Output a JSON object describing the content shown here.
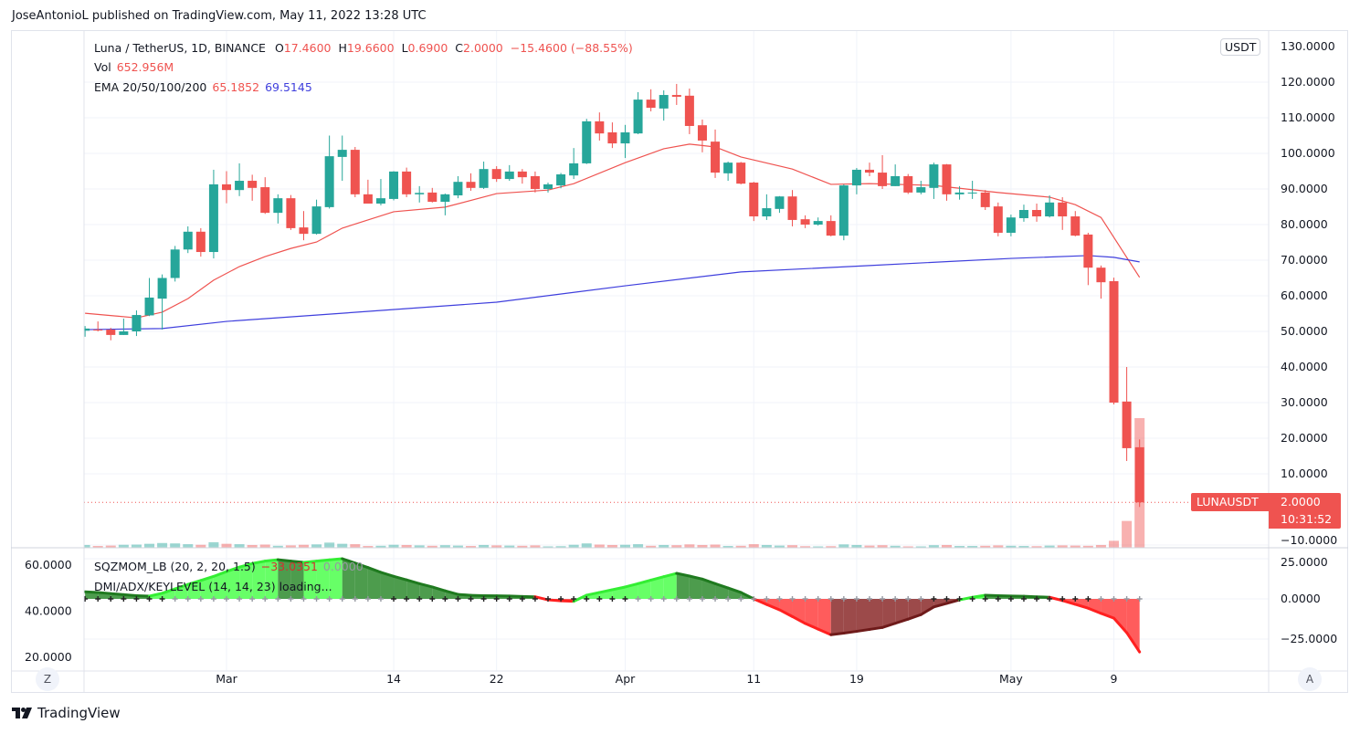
{
  "publish_line": "JoseAntonioL published on TradingView.com, May 11, 2022 13:28 UTC",
  "legend": {
    "symbol": "Luna / TetherUS, 1D, BINANCE",
    "open_label": "O",
    "open": "17.4600",
    "high_label": "H",
    "high": "19.6600",
    "low_label": "L",
    "low": "0.6900",
    "close_label": "C",
    "close": "2.0000",
    "change": "−15.4600 (−88.55%)",
    "vol_label": "Vol",
    "vol": "652.956M",
    "ema_label": "EMA 20/50/100/200",
    "ema_a": "65.1852",
    "ema_b": "69.5145"
  },
  "indicators": {
    "sqz_label": "SQZMOM_LB (20, 2, 20, 1.5)",
    "sqz_value": "−33.0351",
    "sqz_value2": "0.0000",
    "dmi_label": "DMI/ADX/KEYLEVEL (14, 14, 23) loading..."
  },
  "price_axis": {
    "currency_button": "USDT",
    "ticks": [
      "130.0000",
      "120.0000",
      "110.0000",
      "100.0000",
      "90.0000",
      "80.0000",
      "70.0000",
      "60.0000",
      "50.0000",
      "40.0000",
      "30.0000",
      "20.0000",
      "10.0000",
      "−10.0000"
    ],
    "tick_values": [
      130,
      120,
      110,
      100,
      90,
      80,
      70,
      60,
      50,
      40,
      30,
      20,
      10,
      -10
    ]
  },
  "momentum_axis": {
    "ticks": [
      "25.0000",
      "0.0000",
      "−25.0000"
    ],
    "tick_values": [
      25,
      0,
      -25
    ]
  },
  "dmi_axis": {
    "ticks": [
      "60.0000",
      "40.0000",
      "20.0000"
    ],
    "tick_values": [
      60,
      40,
      20
    ]
  },
  "time_axis": {
    "ticks": [
      {
        "label": "Mar",
        "date": "2022-03-01"
      },
      {
        "label": "14",
        "date": "2022-03-14"
      },
      {
        "label": "22",
        "date": "2022-03-22"
      },
      {
        "label": "Apr",
        "date": "2022-04-01"
      },
      {
        "label": "11",
        "date": "2022-04-11"
      },
      {
        "label": "19",
        "date": "2022-04-19"
      },
      {
        "label": "May",
        "date": "2022-05-01"
      },
      {
        "label": "9",
        "date": "2022-05-09"
      }
    ]
  },
  "last_price": {
    "symbol": "LUNAUSDT",
    "price": "2.0000",
    "countdown": "10:31:52",
    "value": 2.0
  },
  "buttons": {
    "z": "Z",
    "a": "A"
  },
  "branding": "TradingView",
  "colors": {
    "up": "#26a69a",
    "down": "#ef5350",
    "ema_a": "#ef5350",
    "ema_b": "#3f3fdd",
    "mom_up_pos": "#4cff4c",
    "mom_down_pos": "#2e8b2e",
    "mom_down_neg": "#ff4040",
    "mom_up_neg": "#8b2a2a"
  },
  "chart_data": [
    {
      "type": "candlestick",
      "title": "Luna / TetherUS, 1D, BINANCE",
      "ylim": [
        -10,
        130
      ],
      "columns": [
        "date",
        "open",
        "high",
        "low",
        "close",
        "volume_m"
      ],
      "candles": [
        [
          "2022-02-18",
          50.2,
          51.5,
          48.5,
          50.8,
          14
        ],
        [
          "2022-02-19",
          50.5,
          52.8,
          50.0,
          50.3,
          9
        ],
        [
          "2022-02-20",
          50.5,
          51.0,
          47.5,
          49.0,
          11
        ],
        [
          "2022-02-21",
          49.0,
          53.6,
          49.0,
          50.0,
          15
        ],
        [
          "2022-02-22",
          50.0,
          55.9,
          48.7,
          54.6,
          16
        ],
        [
          "2022-02-23",
          54.5,
          65.0,
          54.3,
          59.5,
          20
        ],
        [
          "2022-02-24",
          59.2,
          66.0,
          50.5,
          65.0,
          24
        ],
        [
          "2022-02-25",
          65.0,
          74.0,
          64.0,
          73.0,
          22
        ],
        [
          "2022-02-26",
          73.0,
          79.5,
          72.0,
          78.0,
          18
        ],
        [
          "2022-02-27",
          78.0,
          79.0,
          71.0,
          72.3,
          15
        ],
        [
          "2022-02-28",
          72.3,
          95.4,
          70.5,
          91.3,
          28
        ],
        [
          "2022-03-01",
          91.3,
          95.0,
          86.0,
          89.7,
          20
        ],
        [
          "2022-03-02",
          89.7,
          97.2,
          88.0,
          92.3,
          18
        ],
        [
          "2022-03-03",
          92.3,
          94.0,
          86.7,
          90.3,
          14
        ],
        [
          "2022-03-04",
          90.5,
          93.3,
          83.0,
          83.3,
          16
        ],
        [
          "2022-03-05",
          83.3,
          88.5,
          80.3,
          87.4,
          10
        ],
        [
          "2022-03-06",
          87.4,
          88.3,
          78.5,
          79.0,
          12
        ],
        [
          "2022-03-07",
          79.2,
          83.8,
          75.6,
          77.4,
          15
        ],
        [
          "2022-03-08",
          77.4,
          87.0,
          77.2,
          85.1,
          17
        ],
        [
          "2022-03-09",
          84.9,
          105.0,
          84.5,
          99.2,
          26
        ],
        [
          "2022-03-10",
          99.0,
          105.0,
          92.3,
          101.0,
          20
        ],
        [
          "2022-03-11",
          101.0,
          101.8,
          87.7,
          88.5,
          18
        ],
        [
          "2022-03-12",
          88.5,
          92.6,
          85.9,
          85.9,
          9
        ],
        [
          "2022-03-13",
          85.9,
          92.8,
          85.4,
          87.4,
          10
        ],
        [
          "2022-03-14",
          87.2,
          95.0,
          86.8,
          94.9,
          15
        ],
        [
          "2022-03-15",
          94.9,
          96.0,
          87.7,
          88.5,
          14
        ],
        [
          "2022-03-16",
          88.5,
          90.8,
          86.2,
          88.9,
          12
        ],
        [
          "2022-03-17",
          89.0,
          90.3,
          86.2,
          86.4,
          10
        ],
        [
          "2022-03-18",
          86.4,
          88.7,
          82.6,
          88.5,
          13
        ],
        [
          "2022-03-19",
          88.2,
          93.6,
          87.4,
          92.0,
          11
        ],
        [
          "2022-03-20",
          92.0,
          94.4,
          89.5,
          90.3,
          9
        ],
        [
          "2022-03-21",
          90.3,
          97.7,
          90.0,
          95.6,
          14
        ],
        [
          "2022-03-22",
          95.6,
          96.4,
          92.0,
          92.8,
          12
        ],
        [
          "2022-03-23",
          92.8,
          96.7,
          92.3,
          94.9,
          11
        ],
        [
          "2022-03-24",
          94.9,
          95.6,
          91.5,
          93.3,
          10
        ],
        [
          "2022-03-25",
          93.6,
          94.9,
          89.0,
          90.0,
          12
        ],
        [
          "2022-03-26",
          90.0,
          91.8,
          89.0,
          91.3,
          7
        ],
        [
          "2022-03-27",
          91.0,
          94.5,
          90.2,
          94.1,
          8
        ],
        [
          "2022-03-28",
          93.8,
          101.5,
          92.8,
          97.2,
          15
        ],
        [
          "2022-03-29",
          97.2,
          109.7,
          97.0,
          109.0,
          22
        ],
        [
          "2022-03-30",
          109.0,
          111.5,
          103.6,
          105.6,
          16
        ],
        [
          "2022-03-31",
          105.9,
          108.7,
          101.5,
          102.8,
          14
        ],
        [
          "2022-04-01",
          102.8,
          108.0,
          98.7,
          105.9,
          15
        ],
        [
          "2022-04-02",
          105.6,
          117.2,
          105.4,
          115.1,
          18
        ],
        [
          "2022-04-03",
          115.1,
          118.0,
          111.8,
          112.8,
          10
        ],
        [
          "2022-04-04",
          112.6,
          117.7,
          109.2,
          116.4,
          14
        ],
        [
          "2022-04-05",
          116.4,
          119.5,
          113.6,
          115.9,
          13
        ],
        [
          "2022-04-06",
          116.2,
          118.2,
          105.4,
          107.7,
          17
        ],
        [
          "2022-04-07",
          107.9,
          109.5,
          100.3,
          103.6,
          14
        ],
        [
          "2022-04-08",
          103.3,
          106.7,
          93.1,
          94.6,
          16
        ],
        [
          "2022-04-09",
          94.4,
          97.7,
          92.3,
          97.4,
          9
        ],
        [
          "2022-04-10",
          97.4,
          97.6,
          91.3,
          91.5,
          10
        ],
        [
          "2022-04-11",
          91.8,
          92.0,
          81.0,
          82.3,
          18
        ],
        [
          "2022-04-12",
          82.3,
          88.5,
          81.3,
          84.6,
          14
        ],
        [
          "2022-04-13",
          84.4,
          88.0,
          83.3,
          87.9,
          11
        ],
        [
          "2022-04-14",
          87.9,
          89.7,
          79.5,
          81.3,
          13
        ],
        [
          "2022-04-15",
          81.5,
          82.6,
          79.0,
          80.0,
          8
        ],
        [
          "2022-04-16",
          80.0,
          82.0,
          79.7,
          81.0,
          6
        ],
        [
          "2022-04-17",
          81.0,
          82.6,
          76.7,
          76.9,
          8
        ],
        [
          "2022-04-18",
          76.9,
          91.3,
          75.6,
          91.0,
          17
        ],
        [
          "2022-04-19",
          91.0,
          95.9,
          88.5,
          95.4,
          14
        ],
        [
          "2022-04-20",
          95.4,
          97.4,
          93.6,
          94.6,
          11
        ],
        [
          "2022-04-21",
          94.6,
          99.5,
          90.0,
          90.8,
          13
        ],
        [
          "2022-04-22",
          90.8,
          96.9,
          90.8,
          93.6,
          10
        ],
        [
          "2022-04-23",
          93.6,
          94.2,
          88.6,
          89.0,
          7
        ],
        [
          "2022-04-24",
          89.0,
          92.3,
          88.5,
          90.5,
          6
        ],
        [
          "2022-04-25",
          90.3,
          97.4,
          87.2,
          96.9,
          13
        ],
        [
          "2022-04-26",
          96.9,
          97.0,
          86.7,
          88.5,
          14
        ],
        [
          "2022-04-27",
          88.5,
          90.8,
          87.0,
          89.0,
          9
        ],
        [
          "2022-04-28",
          88.8,
          92.3,
          87.2,
          89.0,
          9
        ],
        [
          "2022-04-29",
          89.0,
          89.7,
          84.1,
          84.9,
          10
        ],
        [
          "2022-04-30",
          85.1,
          86.2,
          76.7,
          77.7,
          12
        ],
        [
          "2022-05-01",
          77.7,
          82.8,
          76.7,
          82.0,
          10
        ],
        [
          "2022-05-02",
          81.8,
          85.6,
          80.8,
          84.1,
          9
        ],
        [
          "2022-05-03",
          84.1,
          85.9,
          80.8,
          82.3,
          8
        ],
        [
          "2022-05-04",
          82.3,
          88.2,
          82.0,
          86.2,
          11
        ],
        [
          "2022-05-05",
          86.2,
          87.7,
          78.5,
          82.3,
          12
        ],
        [
          "2022-05-06",
          82.3,
          83.8,
          76.7,
          76.9,
          11
        ],
        [
          "2022-05-07",
          77.2,
          77.7,
          63.0,
          67.9,
          10
        ],
        [
          "2022-05-08",
          67.9,
          68.5,
          59.2,
          63.8,
          14
        ],
        [
          "2022-05-09",
          64.1,
          65.1,
          29.5,
          30.0,
          35
        ],
        [
          "2022-05-10",
          30.3,
          40.0,
          13.6,
          17.2,
          135
        ],
        [
          "2022-05-11",
          17.46,
          19.66,
          0.69,
          2.0,
          652.956
        ]
      ],
      "ema_series": [
        {
          "value_label": "65.1852",
          "color": "#ef5350",
          "points": [
            [
              "2022-02-18",
              55.1
            ],
            [
              "2022-02-22",
              53.8
            ],
            [
              "2022-02-24",
              55.4
            ],
            [
              "2022-02-26",
              59.2
            ],
            [
              "2022-02-28",
              64.4
            ],
            [
              "2022-03-02",
              68.2
            ],
            [
              "2022-03-04",
              71.0
            ],
            [
              "2022-03-06",
              73.3
            ],
            [
              "2022-03-08",
              75.1
            ],
            [
              "2022-03-10",
              79.0
            ],
            [
              "2022-03-14",
              83.6
            ],
            [
              "2022-03-18",
              84.9
            ],
            [
              "2022-03-22",
              88.7
            ],
            [
              "2022-03-26",
              89.7
            ],
            [
              "2022-03-28",
              91.5
            ],
            [
              "2022-04-01",
              97.4
            ],
            [
              "2022-04-04",
              101.3
            ],
            [
              "2022-04-06",
              102.6
            ],
            [
              "2022-04-08",
              101.8
            ],
            [
              "2022-04-10",
              99.0
            ],
            [
              "2022-04-14",
              95.6
            ],
            [
              "2022-04-17",
              91.3
            ],
            [
              "2022-04-20",
              91.5
            ],
            [
              "2022-04-25",
              91.0
            ],
            [
              "2022-04-30",
              89.0
            ],
            [
              "2022-05-04",
              87.7
            ],
            [
              "2022-05-06",
              85.6
            ],
            [
              "2022-05-08",
              82.0
            ],
            [
              "2022-05-09",
              76.4
            ],
            [
              "2022-05-11",
              65.1852
            ]
          ]
        },
        {
          "value_label": "69.5145",
          "color": "#3f3fdd",
          "points": [
            [
              "2022-02-18",
              50.5
            ],
            [
              "2022-02-24",
              50.8
            ],
            [
              "2022-03-01",
              52.8
            ],
            [
              "2022-03-10",
              55.1
            ],
            [
              "2022-03-22",
              58.2
            ],
            [
              "2022-04-01",
              62.8
            ],
            [
              "2022-04-10",
              66.7
            ],
            [
              "2022-04-20",
              68.5
            ],
            [
              "2022-05-01",
              70.5
            ],
            [
              "2022-05-07",
              71.3
            ],
            [
              "2022-05-09",
              70.8
            ],
            [
              "2022-05-11",
              69.5145
            ]
          ]
        }
      ]
    },
    {
      "type": "area",
      "title": "SQZMOM_LB (20, 2, 20, 1.5)",
      "ylim": [
        -35,
        30
      ],
      "start_date": "2022-02-18",
      "values": [
        4.4,
        4.0,
        3.3,
        2.6,
        2.0,
        1.7,
        3.5,
        6.2,
        9,
        11.5,
        14,
        17,
        19.8,
        22,
        23.5,
        24.4,
        23.5,
        22.7,
        23.5,
        24.3,
        25,
        22.3,
        19.5,
        16.5,
        14,
        11.8,
        9.5,
        7.4,
        5,
        2.8,
        2.2,
        2.0,
        1.9,
        1.8,
        1.5,
        1.3,
        -0.6,
        -1.2,
        -1.5,
        2.3,
        4.0,
        5.7,
        7.4,
        9.5,
        11.7,
        13.8,
        15.9,
        14.2,
        12.3,
        9.5,
        6.8,
        4,
        0,
        -3.5,
        -6.8,
        -11,
        -15.3,
        -18.8,
        -22.3,
        -21.3,
        -20.2,
        -19,
        -17.8,
        -15.2,
        -12.6,
        -9.8,
        -5,
        -2.8,
        -0.6,
        1,
        2.3,
        2.0,
        1.8,
        1.6,
        1.3,
        1,
        -1,
        -3.4,
        -5.8,
        -9,
        -12,
        -21,
        -33.0351
      ],
      "squeeze_on": [
        1,
        1,
        1,
        1,
        1,
        1,
        1,
        0,
        0,
        0,
        0,
        0,
        0,
        0,
        0,
        0,
        0,
        0,
        0,
        0,
        0,
        0,
        0,
        0,
        1,
        1,
        1,
        1,
        1,
        1,
        1,
        1,
        1,
        1,
        1,
        1,
        1,
        1,
        1,
        1,
        1,
        1,
        1,
        0,
        0,
        0,
        0,
        0,
        0,
        0,
        0,
        0,
        0,
        0,
        0,
        0,
        0,
        0,
        0,
        0,
        0,
        0,
        0,
        0,
        0,
        0,
        1,
        1,
        1,
        1,
        1,
        1,
        1,
        1,
        1,
        1,
        1,
        1,
        1,
        0,
        0,
        0,
        0
      ]
    }
  ]
}
